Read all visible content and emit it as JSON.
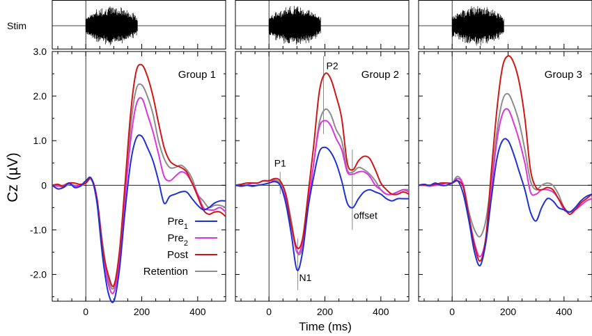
{
  "chart_data": {
    "type": "line",
    "ylabel": "Cz (µV)",
    "xlabel": "Time (ms)",
    "stim_label": "Stim",
    "xlim": [
      -120,
      500
    ],
    "ylim": [
      -2.6,
      3.0
    ],
    "xticks": [
      0,
      200,
      400
    ],
    "xtick_labels": [
      "0",
      "200",
      "400"
    ],
    "yticks": [
      3.0,
      2.0,
      1.0,
      0,
      -1.0,
      -2.0
    ],
    "ytick_labels": [
      "3.0",
      "2.0",
      "1.0",
      "0",
      "-1.0",
      "-2.0"
    ],
    "stim_window_ms": [
      0,
      185
    ],
    "legend": [
      {
        "key": "pre1",
        "label": "Pre",
        "sub": "1",
        "color": "#1f2fd6"
      },
      {
        "key": "pre2",
        "label": "Pre",
        "sub": "2",
        "color": "#dd33dd"
      },
      {
        "key": "post",
        "label": "Post",
        "sub": "",
        "color": "#d11515"
      },
      {
        "key": "retention",
        "label": "Retention",
        "sub": "",
        "color": "#8c8c8c"
      }
    ],
    "x": [
      -120,
      -100,
      -80,
      -60,
      -40,
      -20,
      0,
      20,
      40,
      60,
      80,
      100,
      120,
      140,
      160,
      180,
      200,
      220,
      240,
      260,
      280,
      300,
      320,
      340,
      360,
      380,
      400,
      420,
      440,
      460,
      480,
      500
    ],
    "panels": [
      {
        "title": "Group 1",
        "series": [
          {
            "key": "retention",
            "name": "Retention",
            "values": [
              0,
              0,
              -0.05,
              0.02,
              0,
              -0.02,
              0.05,
              0.12,
              -0.3,
              -1.3,
              -2.1,
              -2.3,
              -1.6,
              -0.2,
              1.3,
              2.15,
              2.25,
              2.0,
              1.6,
              1.0,
              0.6,
              0.4,
              0.4,
              0.45,
              0.35,
              0.15,
              -0.2,
              -0.35,
              -0.5,
              -0.45,
              -0.45,
              -0.5
            ]
          },
          {
            "key": "pre2",
            "name": "Pre2",
            "values": [
              0,
              -0.02,
              0,
              0.05,
              -0.02,
              0,
              0.05,
              0.15,
              -0.3,
              -1.4,
              -2.2,
              -2.4,
              -1.7,
              -0.3,
              1.0,
              1.8,
              1.95,
              1.6,
              1.2,
              0.7,
              0.2,
              0.1,
              0.2,
              0.3,
              0.25,
              0.05,
              -0.2,
              -0.5,
              -0.55,
              -0.55,
              -0.5,
              -0.6
            ]
          },
          {
            "key": "post",
            "name": "Post",
            "values": [
              0,
              0.02,
              -0.02,
              0.05,
              0.05,
              0.02,
              0.05,
              0.15,
              -0.3,
              -1.4,
              -2.0,
              -2.25,
              -1.5,
              0,
              1.6,
              2.55,
              2.7,
              2.45,
              2.0,
              1.4,
              0.85,
              0.55,
              0.45,
              0.4,
              0.3,
              0.05,
              -0.25,
              -0.55,
              -0.65,
              -0.6,
              -0.6,
              -0.7
            ]
          },
          {
            "key": "pre1",
            "name": "Pre1",
            "values": [
              0,
              -0.08,
              -0.05,
              0.05,
              -0.05,
              -0.02,
              0.1,
              0.15,
              -0.4,
              -1.6,
              -2.4,
              -2.6,
              -1.9,
              -0.6,
              0.5,
              1.05,
              1.1,
              0.85,
              0.55,
              0.1,
              -0.4,
              -0.25,
              -0.2,
              -0.15,
              -0.15,
              -0.3,
              -0.45,
              -0.55,
              -0.5,
              -0.4,
              -0.35,
              -0.35
            ]
          }
        ]
      },
      {
        "title": "Group 2",
        "series": [
          {
            "key": "retention",
            "name": "Retention",
            "values": [
              0,
              0.02,
              0,
              0.05,
              0.05,
              0.1,
              0.1,
              0.12,
              0.05,
              -0.2,
              -0.8,
              -1.5,
              -1.4,
              -0.5,
              0.5,
              1.4,
              1.7,
              1.6,
              1.25,
              1.0,
              0.35,
              0.3,
              0.4,
              0.35,
              0.25,
              0.1,
              -0.1,
              -0.2,
              -0.2,
              -0.15,
              -0.1,
              -0.1
            ]
          },
          {
            "key": "pre2",
            "name": "Pre2",
            "values": [
              0,
              -0.02,
              0,
              0.05,
              0.05,
              0.1,
              0.1,
              0.1,
              0,
              -0.3,
              -0.9,
              -1.5,
              -1.3,
              -0.4,
              0.5,
              1.3,
              1.45,
              1.35,
              1.05,
              0.8,
              0.3,
              0.25,
              0.3,
              0.3,
              0.2,
              0,
              -0.1,
              -0.2,
              -0.2,
              -0.15,
              -0.1,
              -0.15
            ]
          },
          {
            "key": "post",
            "name": "Post",
            "values": [
              0,
              0.02,
              0.05,
              0.05,
              0.05,
              0.1,
              0.1,
              0.15,
              0.1,
              -0.2,
              -0.9,
              -1.4,
              -1.2,
              -0.2,
              0.9,
              2.1,
              2.5,
              2.4,
              2.0,
              1.5,
              0.5,
              0.35,
              0.55,
              0.65,
              0.6,
              0.35,
              0.05,
              -0.1,
              -0.2,
              -0.2,
              -0.15,
              -0.2
            ]
          },
          {
            "key": "pre1",
            "name": "Pre1",
            "values": [
              0,
              -0.02,
              0,
              -0.02,
              0,
              0.02,
              0.05,
              0.08,
              0,
              -0.4,
              -1.1,
              -1.9,
              -1.5,
              -0.5,
              0.2,
              0.75,
              0.85,
              0.75,
              0.5,
              0.1,
              -0.4,
              -0.5,
              -0.3,
              -0.15,
              -0.1,
              -0.15,
              -0.2,
              -0.3,
              -0.35,
              -0.3,
              -0.3,
              -0.3
            ]
          }
        ]
      },
      {
        "title": "Group 3",
        "series": [
          {
            "key": "retention",
            "name": "Retention",
            "values": [
              0,
              0,
              -0.02,
              0.02,
              0,
              0,
              0.05,
              0.2,
              0,
              -0.6,
              -1.0,
              -1.15,
              -0.8,
              0.1,
              1.2,
              1.9,
              2.05,
              1.8,
              1.4,
              0.8,
              0.1,
              -0.1,
              0,
              0.05,
              0,
              -0.2,
              -0.5,
              -0.6,
              -0.55,
              -0.45,
              -0.35,
              -0.3
            ]
          },
          {
            "key": "pre2",
            "name": "Pre2",
            "values": [
              0,
              0.02,
              -0.02,
              0,
              0.02,
              0.05,
              0.05,
              0.15,
              0,
              -0.7,
              -1.3,
              -1.6,
              -1.2,
              -0.1,
              1.0,
              1.6,
              1.7,
              1.4,
              1.0,
              0.5,
              -0.15,
              -0.2,
              -0.1,
              -0.1,
              -0.15,
              -0.3,
              -0.55,
              -0.6,
              -0.55,
              -0.45,
              -0.35,
              -0.3
            ]
          },
          {
            "key": "post",
            "name": "Post",
            "values": [
              0,
              0,
              0,
              0.02,
              0.05,
              0.05,
              0.05,
              0.1,
              -0.05,
              -0.7,
              -1.35,
              -1.7,
              -1.2,
              0.3,
              1.7,
              2.65,
              2.9,
              2.75,
              2.3,
              1.5,
              0.35,
              -0.05,
              -0.1,
              -0.05,
              -0.1,
              -0.3,
              -0.5,
              -0.65,
              -0.55,
              -0.4,
              -0.3,
              -0.2
            ]
          },
          {
            "key": "pre1",
            "name": "Pre1",
            "values": [
              0,
              0.02,
              0,
              0.05,
              0,
              0,
              0.05,
              0.1,
              -0.2,
              -0.8,
              -1.5,
              -1.8,
              -1.3,
              -0.3,
              0.6,
              1.0,
              1.0,
              0.7,
              0.3,
              -0.1,
              -0.6,
              -0.8,
              -0.5,
              -0.3,
              -0.35,
              -0.5,
              -0.55,
              -0.6,
              -0.5,
              -0.35,
              -0.25,
              -0.2
            ]
          }
        ]
      }
    ],
    "annotations": [
      {
        "panel": 1,
        "label": "P1",
        "x": 40
      },
      {
        "panel": 1,
        "label": "N1",
        "x": 103
      },
      {
        "panel": 1,
        "label": "P2",
        "x": 195
      },
      {
        "panel": 1,
        "label": "offset",
        "x": 298
      }
    ]
  }
}
